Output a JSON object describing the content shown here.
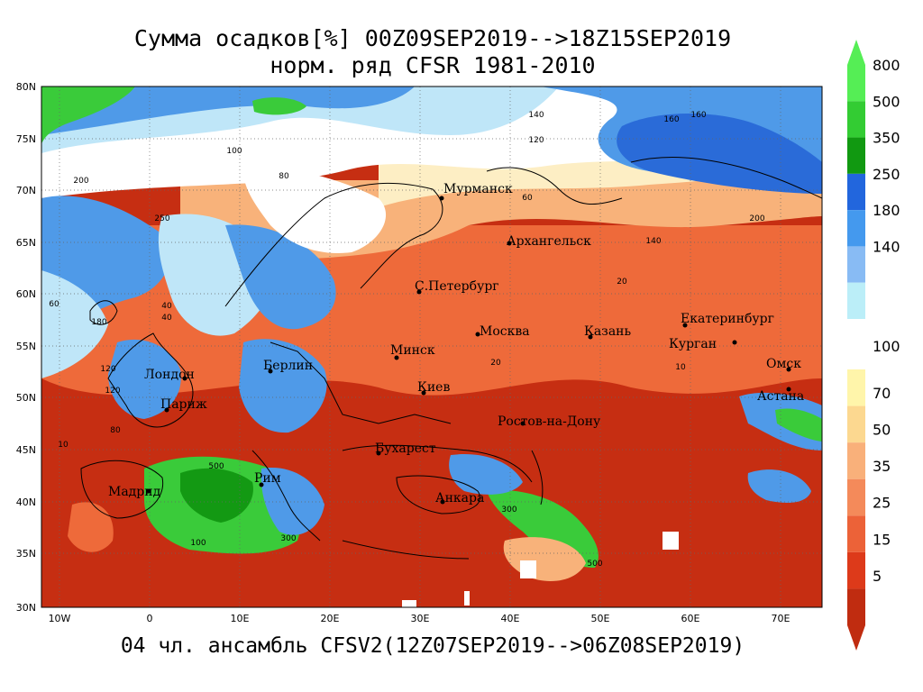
{
  "title_line1": "Сумма осадков[%] 00Z09SEP2019-->18Z15SEP2019",
  "title_line2": "норм. ряд CFSR 1981-2010",
  "footer": "04 чл. ансамбль CFSV2(12Z07SEP2019-->06Z08SEP2019)",
  "lat_labels": [
    "80N",
    "75N",
    "70N",
    "65N",
    "60N",
    "55N",
    "50N",
    "45N",
    "40N",
    "35N",
    "30N"
  ],
  "lon_labels": [
    "10W",
    "0",
    "10E",
    "20E",
    "30E",
    "40E",
    "50E",
    "60E",
    "70E"
  ],
  "cities": [
    {
      "name": "Мурманск"
    },
    {
      "name": "Архангельск"
    },
    {
      "name": "С.Петербург"
    },
    {
      "name": "Москва"
    },
    {
      "name": "Казань"
    },
    {
      "name": "Екатеринбург"
    },
    {
      "name": "Курган"
    },
    {
      "name": "Минск"
    },
    {
      "name": "Берлин"
    },
    {
      "name": "Омск"
    },
    {
      "name": "Лондон"
    },
    {
      "name": "Париж"
    },
    {
      "name": "Киев"
    },
    {
      "name": "Астана"
    },
    {
      "name": "Ростов-на-Дону"
    },
    {
      "name": "Бухарест"
    },
    {
      "name": "Мадрид"
    },
    {
      "name": "Рим"
    },
    {
      "name": "Анкара"
    }
  ],
  "contour_labels": [
    "140",
    "160",
    "120",
    "100",
    "80",
    "200",
    "60",
    "40",
    "20",
    "10",
    "500",
    "300",
    "250",
    "180",
    "120",
    "80",
    "60",
    "40",
    "20",
    "10",
    "100",
    "200",
    "160",
    "140",
    "120",
    "500",
    "300"
  ],
  "legend": {
    "upper": [
      {
        "label": "800",
        "color": "#55ee55"
      },
      {
        "label": "500",
        "color": "#33cc33"
      },
      {
        "label": "350",
        "color": "#119911"
      },
      {
        "label": "250",
        "color": "#2266dd"
      },
      {
        "label": "180",
        "color": "#4499ee"
      },
      {
        "label": "140",
        "color": "#88bbf4"
      },
      {
        "label": "",
        "color": "#bbeef8"
      }
    ],
    "middle_label": "100",
    "lower": [
      {
        "label": "70",
        "color": "#fff5aa"
      },
      {
        "label": "50",
        "color": "#fcd890"
      },
      {
        "label": "35",
        "color": "#f9b07a"
      },
      {
        "label": "25",
        "color": "#f48a5a"
      },
      {
        "label": "15",
        "color": "#ec6238"
      },
      {
        "label": "5",
        "color": "#dd3a1a"
      },
      {
        "label": "",
        "color": "#c02c10"
      }
    ]
  },
  "colors": {
    "dry": "#c62e12",
    "orange": "#ee6a3a",
    "light_orange": "#f8b27a",
    "pale": "#fdeec4",
    "white": "#ffffff",
    "light_blue": "#bfe6f8",
    "blue": "#4f9ae8",
    "deep_blue": "#2a6bd8",
    "green": "#3acb3a",
    "dark_green": "#139913"
  }
}
